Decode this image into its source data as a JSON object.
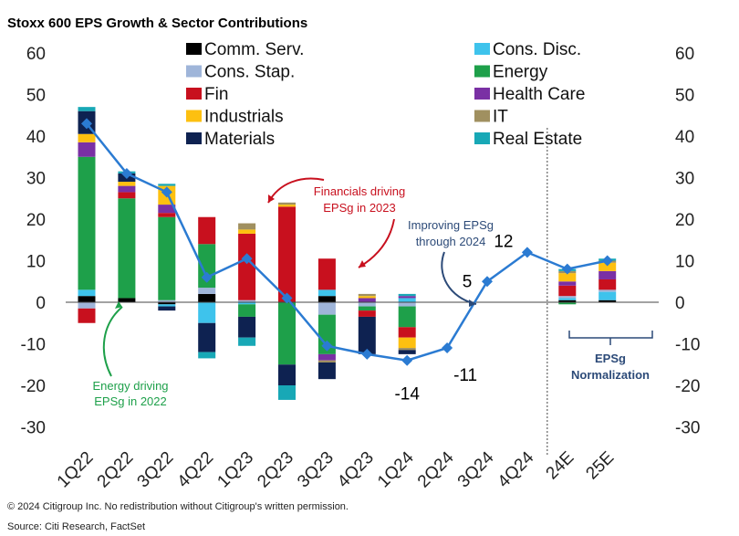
{
  "title": "Stoxx 600 EPS Growth & Sector Contributions",
  "footer": {
    "copyright": "© 2024 Citigroup Inc. No redistribution without Citigroup's written permission.",
    "source": "Source: Citi Research, FactSet"
  },
  "chart_data": {
    "type": "bar",
    "stacked": true,
    "title": "Stoxx 600 EPS Growth & Sector Contributions",
    "categories": [
      "1Q22",
      "2Q22",
      "3Q22",
      "4Q22",
      "1Q23",
      "2Q23",
      "3Q23",
      "4Q23",
      "1Q24",
      "2Q24",
      "3Q24",
      "4Q24",
      "24E",
      "25E"
    ],
    "ylim": [
      -30,
      60
    ],
    "yticks": [
      -30,
      -20,
      -10,
      0,
      10,
      20,
      30,
      40,
      50,
      60
    ],
    "secondary_axis": true,
    "grid": false,
    "legend_position": "top",
    "series": [
      {
        "name": "Comm. Serv.",
        "color": "#000000",
        "values": [
          1.5,
          1,
          -0.5,
          2,
          0,
          0,
          1.5,
          0,
          0,
          0,
          0,
          0,
          0.5,
          0.5
        ]
      },
      {
        "name": "Cons. Disc.",
        "color": "#3ec3ec",
        "values": [
          1.5,
          0,
          -0.5,
          -5,
          -0.5,
          0,
          1.5,
          0,
          1,
          0,
          0,
          0,
          0.5,
          2
        ]
      },
      {
        "name": "Cons. Stap.",
        "color": "#9fb5d9",
        "values": [
          -1.5,
          0,
          0.5,
          1.5,
          0.5,
          0,
          -3,
          -1,
          -1,
          0,
          0,
          0,
          0.5,
          0.5
        ]
      },
      {
        "name": "Energy",
        "color": "#1ea04a",
        "values": [
          32,
          24,
          20,
          10.5,
          -3,
          -15,
          -9.5,
          -1,
          -5,
          0,
          0,
          0,
          -0.5,
          0
        ]
      },
      {
        "name": "Fin",
        "color": "#c8101e",
        "values": [
          -3.5,
          1.5,
          1,
          6.5,
          16,
          23,
          7.5,
          -1.5,
          -2.5,
          0,
          0,
          0,
          2.5,
          2.5
        ]
      },
      {
        "name": "Health Care",
        "color": "#7a30a4",
        "values": [
          3.5,
          1.5,
          2,
          0,
          0,
          0,
          -1.5,
          1,
          0.5,
          0,
          0,
          0,
          1,
          2
        ]
      },
      {
        "name": "Industrials",
        "color": "#fdc010",
        "values": [
          2,
          1,
          4.5,
          0,
          1,
          0.5,
          0,
          0.5,
          -2.5,
          0,
          0,
          0,
          2,
          2
        ]
      },
      {
        "name": "IT",
        "color": "#a09060",
        "values": [
          0,
          0,
          0,
          0,
          1.5,
          0.5,
          -0.5,
          0.5,
          -0.5,
          0,
          0,
          0,
          0.5,
          0.5
        ]
      },
      {
        "name": "Materials",
        "color": "#0e2251",
        "values": [
          5.5,
          2,
          -1,
          -7,
          -5,
          -5,
          -4,
          -9,
          -1,
          0,
          0,
          0,
          0,
          0
        ]
      },
      {
        "name": "Real Estate",
        "color": "#18a8b6",
        "values": [
          1,
          0.5,
          0.5,
          -1.5,
          -2,
          -3.5,
          0,
          0,
          0.5,
          0,
          0,
          0,
          0.5,
          0.5
        ]
      }
    ],
    "line": {
      "name": "EPSg",
      "color": "#2b7bd2",
      "values": [
        43,
        31,
        26.5,
        6,
        10.5,
        1,
        -10.5,
        -12.5,
        -14,
        -11,
        5,
        12,
        8,
        10
      ]
    },
    "data_labels": [
      {
        "category": "2Q24",
        "text": "-11"
      },
      {
        "category": "1Q24",
        "text": "-14"
      },
      {
        "category": "3Q24",
        "text": "5"
      },
      {
        "category": "4Q24",
        "text": "12"
      }
    ],
    "annotations": {
      "energy": "Energy driving EPSg in 2022",
      "financials": "Financials driving EPSg in 2023",
      "improving": "Improving EPSg through 2024",
      "normalization": "EPSg Normalization"
    }
  }
}
